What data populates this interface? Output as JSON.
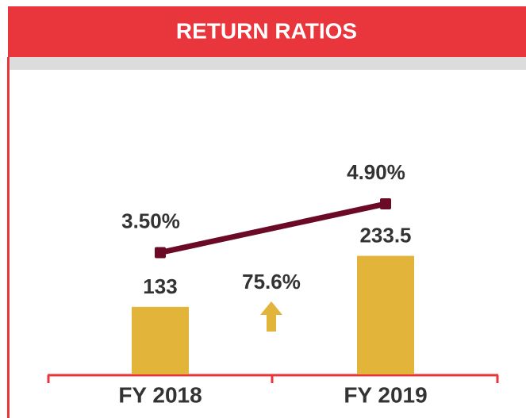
{
  "chart_data": {
    "type": "bar",
    "title": "RETURN RATIOS",
    "categories": [
      "FY 2018",
      "FY 2019"
    ],
    "series": [
      {
        "type": "bar",
        "color": "#e2b43a",
        "values": [
          133,
          233.5
        ]
      },
      {
        "type": "line",
        "axis": "y2",
        "color": "#6b0a26",
        "values": [
          3.5,
          4.9
        ],
        "value_labels": [
          "3.50%",
          "4.90%"
        ]
      }
    ],
    "ylim": [
      0,
      425
    ],
    "y2lim": [
      0,
      6.2
    ],
    "annotation": "75.6%"
  }
}
